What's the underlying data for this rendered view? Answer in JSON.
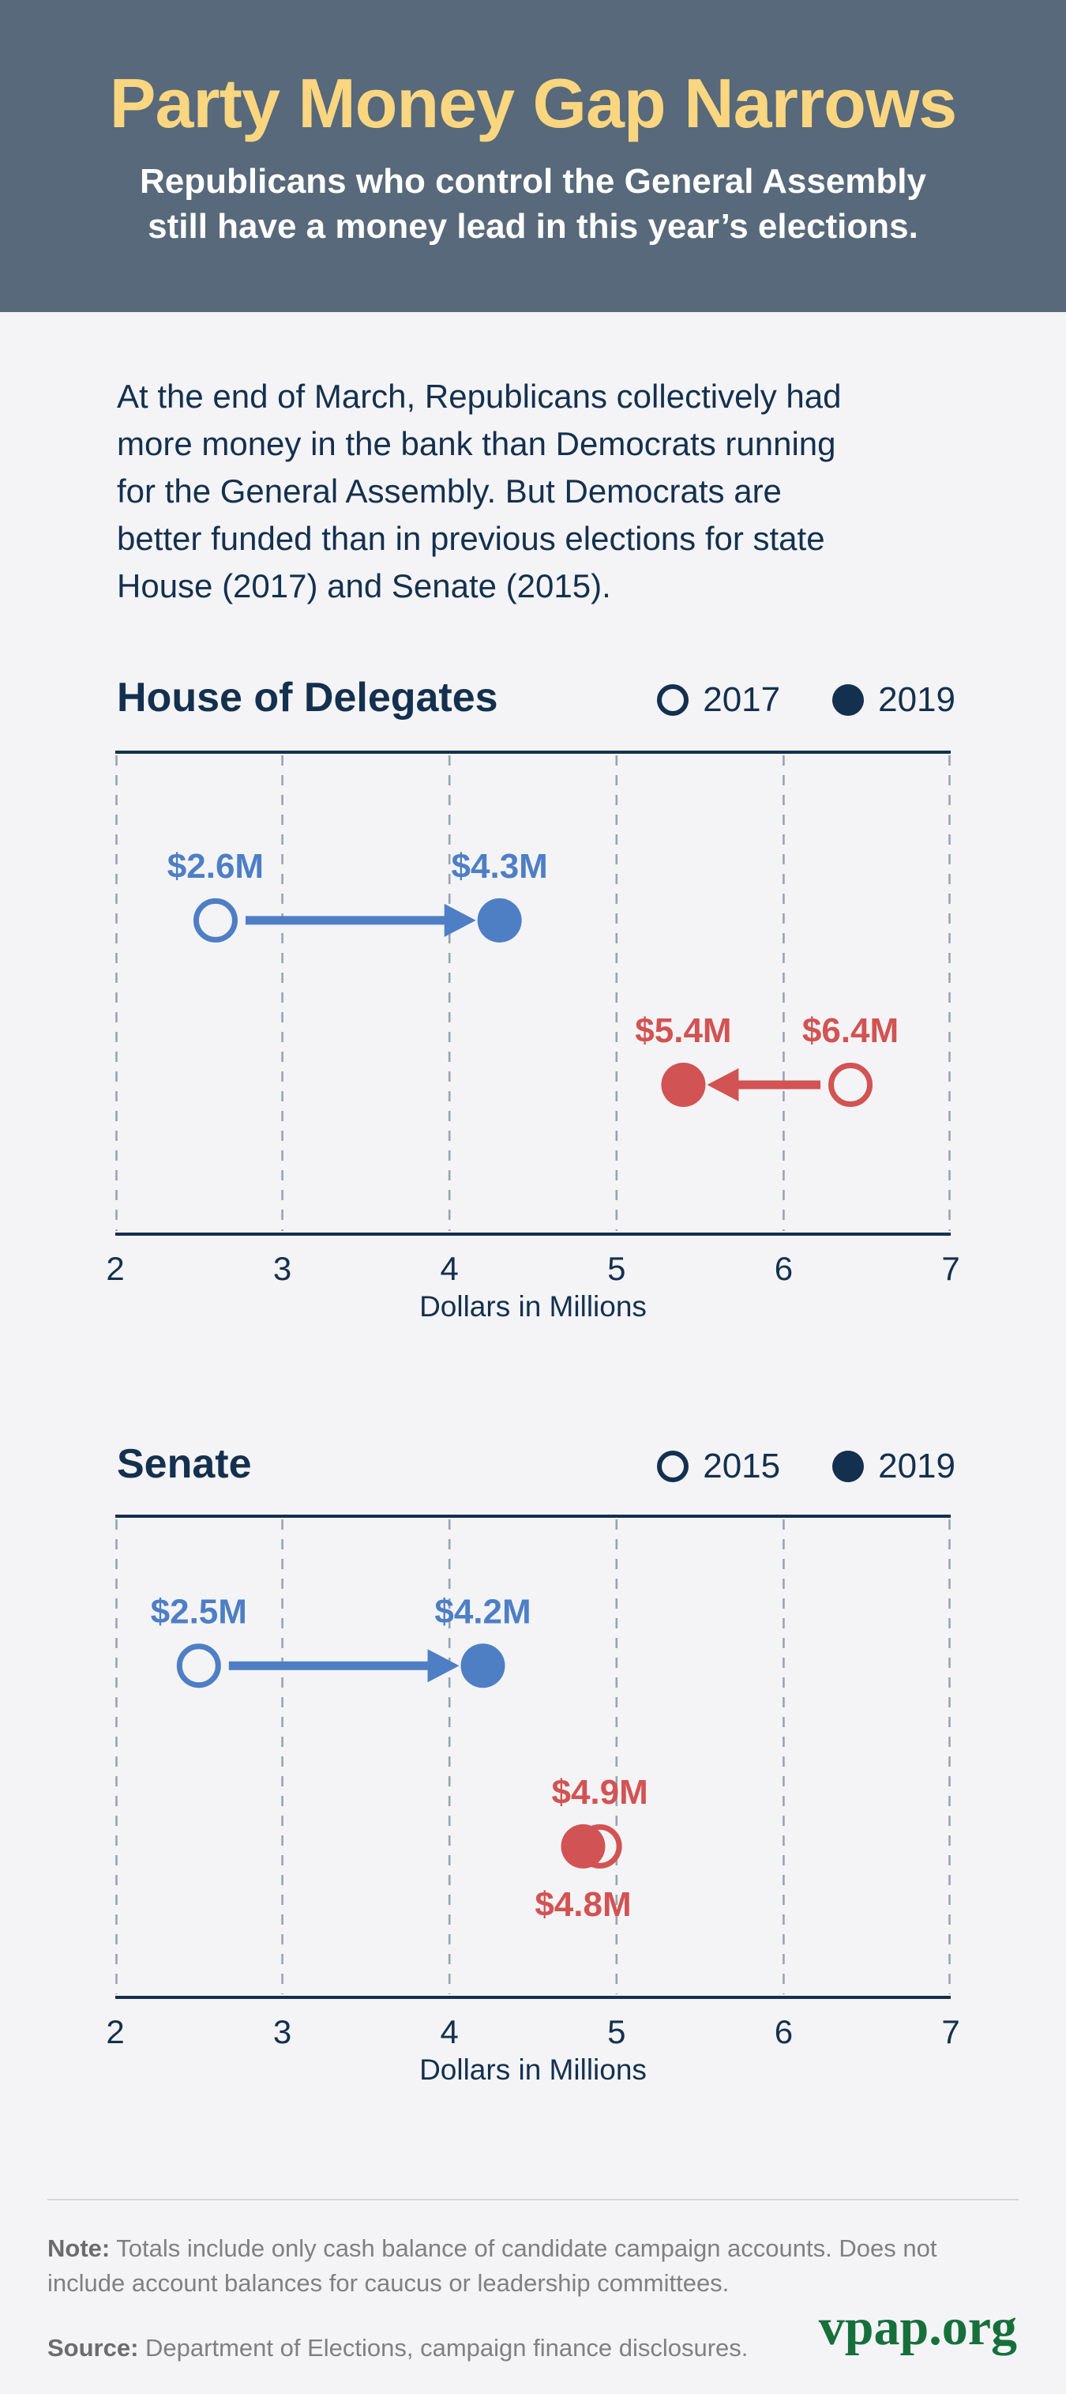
{
  "header": {
    "title": "Party Money Gap Narrows",
    "subtitle_lines": [
      "Republicans who control the General Assembly",
      "still have a money lead in this year’s elections."
    ]
  },
  "intro_lines": [
    "At the end of March, Republicans collectively had",
    "more money in the bank than Democrats running",
    "for the General Assembly. But Democrats are",
    "better funded than in previous elections for state",
    "House (2017) and Senate (2015)."
  ],
  "colors": {
    "header_bg": "#57697A",
    "title_yellow": "#FAD680",
    "navy": "#14304F",
    "dem_blue": "#4E7FC5",
    "rep_red": "#D25353",
    "grid_gray": "#99A3B1",
    "page_bg": "#F4F4F6",
    "note_gray": "#808083",
    "logo_green": "#17703C"
  },
  "chart_data": [
    {
      "type": "dumbbell",
      "title": "House of Delegates",
      "legend": [
        {
          "label": "2017",
          "marker": "open"
        },
        {
          "label": "2019",
          "marker": "filled"
        }
      ],
      "xlabel": "Dollars in Millions",
      "xlim": [
        2,
        7
      ],
      "xticks": [
        "2",
        "3",
        "4",
        "5",
        "6",
        "7"
      ],
      "grid": "dashed-vertical",
      "series": [
        {
          "name": "Democrats",
          "color": "#4E7FC5",
          "from": {
            "year": "2017",
            "value": 2.6,
            "label": "$2.6M"
          },
          "to": {
            "year": "2019",
            "value": 4.3,
            "label": "$4.3M"
          },
          "arrow": true,
          "row_fraction": 0.35,
          "to_label_position": "above"
        },
        {
          "name": "Republicans",
          "color": "#D25353",
          "from": {
            "year": "2017",
            "value": 6.4,
            "label": "$6.4M"
          },
          "to": {
            "year": "2019",
            "value": 5.4,
            "label": "$5.4M"
          },
          "arrow": true,
          "row_fraction": 0.689,
          "to_label_position": "above"
        }
      ]
    },
    {
      "type": "dumbbell",
      "title": "Senate",
      "legend": [
        {
          "label": "2015",
          "marker": "open"
        },
        {
          "label": "2019",
          "marker": "filled"
        }
      ],
      "xlabel": "Dollars in Millions",
      "xlim": [
        2,
        7
      ],
      "xticks": [
        "2",
        "3",
        "4",
        "5",
        "6",
        "7"
      ],
      "grid": "dashed-vertical",
      "series": [
        {
          "name": "Democrats",
          "color": "#4E7FC5",
          "from": {
            "year": "2015",
            "value": 2.5,
            "label": "$2.5M"
          },
          "to": {
            "year": "2019",
            "value": 4.2,
            "label": "$4.2M"
          },
          "arrow": true,
          "row_fraction": 0.312,
          "to_label_position": "above"
        },
        {
          "name": "Republicans",
          "color": "#D25353",
          "from": {
            "year": "2015",
            "value": 4.9,
            "label": "$4.9M"
          },
          "to": {
            "year": "2019",
            "value": 4.8,
            "label": "$4.8M"
          },
          "arrow": false,
          "row_fraction": 0.685,
          "to_label_position": "below"
        }
      ]
    }
  ],
  "footer": {
    "note_label": "Note:",
    "note_lines": [
      "Totals include only cash balance of candidate campaign accounts. Does not",
      "include account balances for caucus or leadership committees."
    ],
    "source_label": "Source:",
    "source_text": "Department of Elections, campaign finance disclosures.",
    "logo_text": "vpap.org"
  }
}
